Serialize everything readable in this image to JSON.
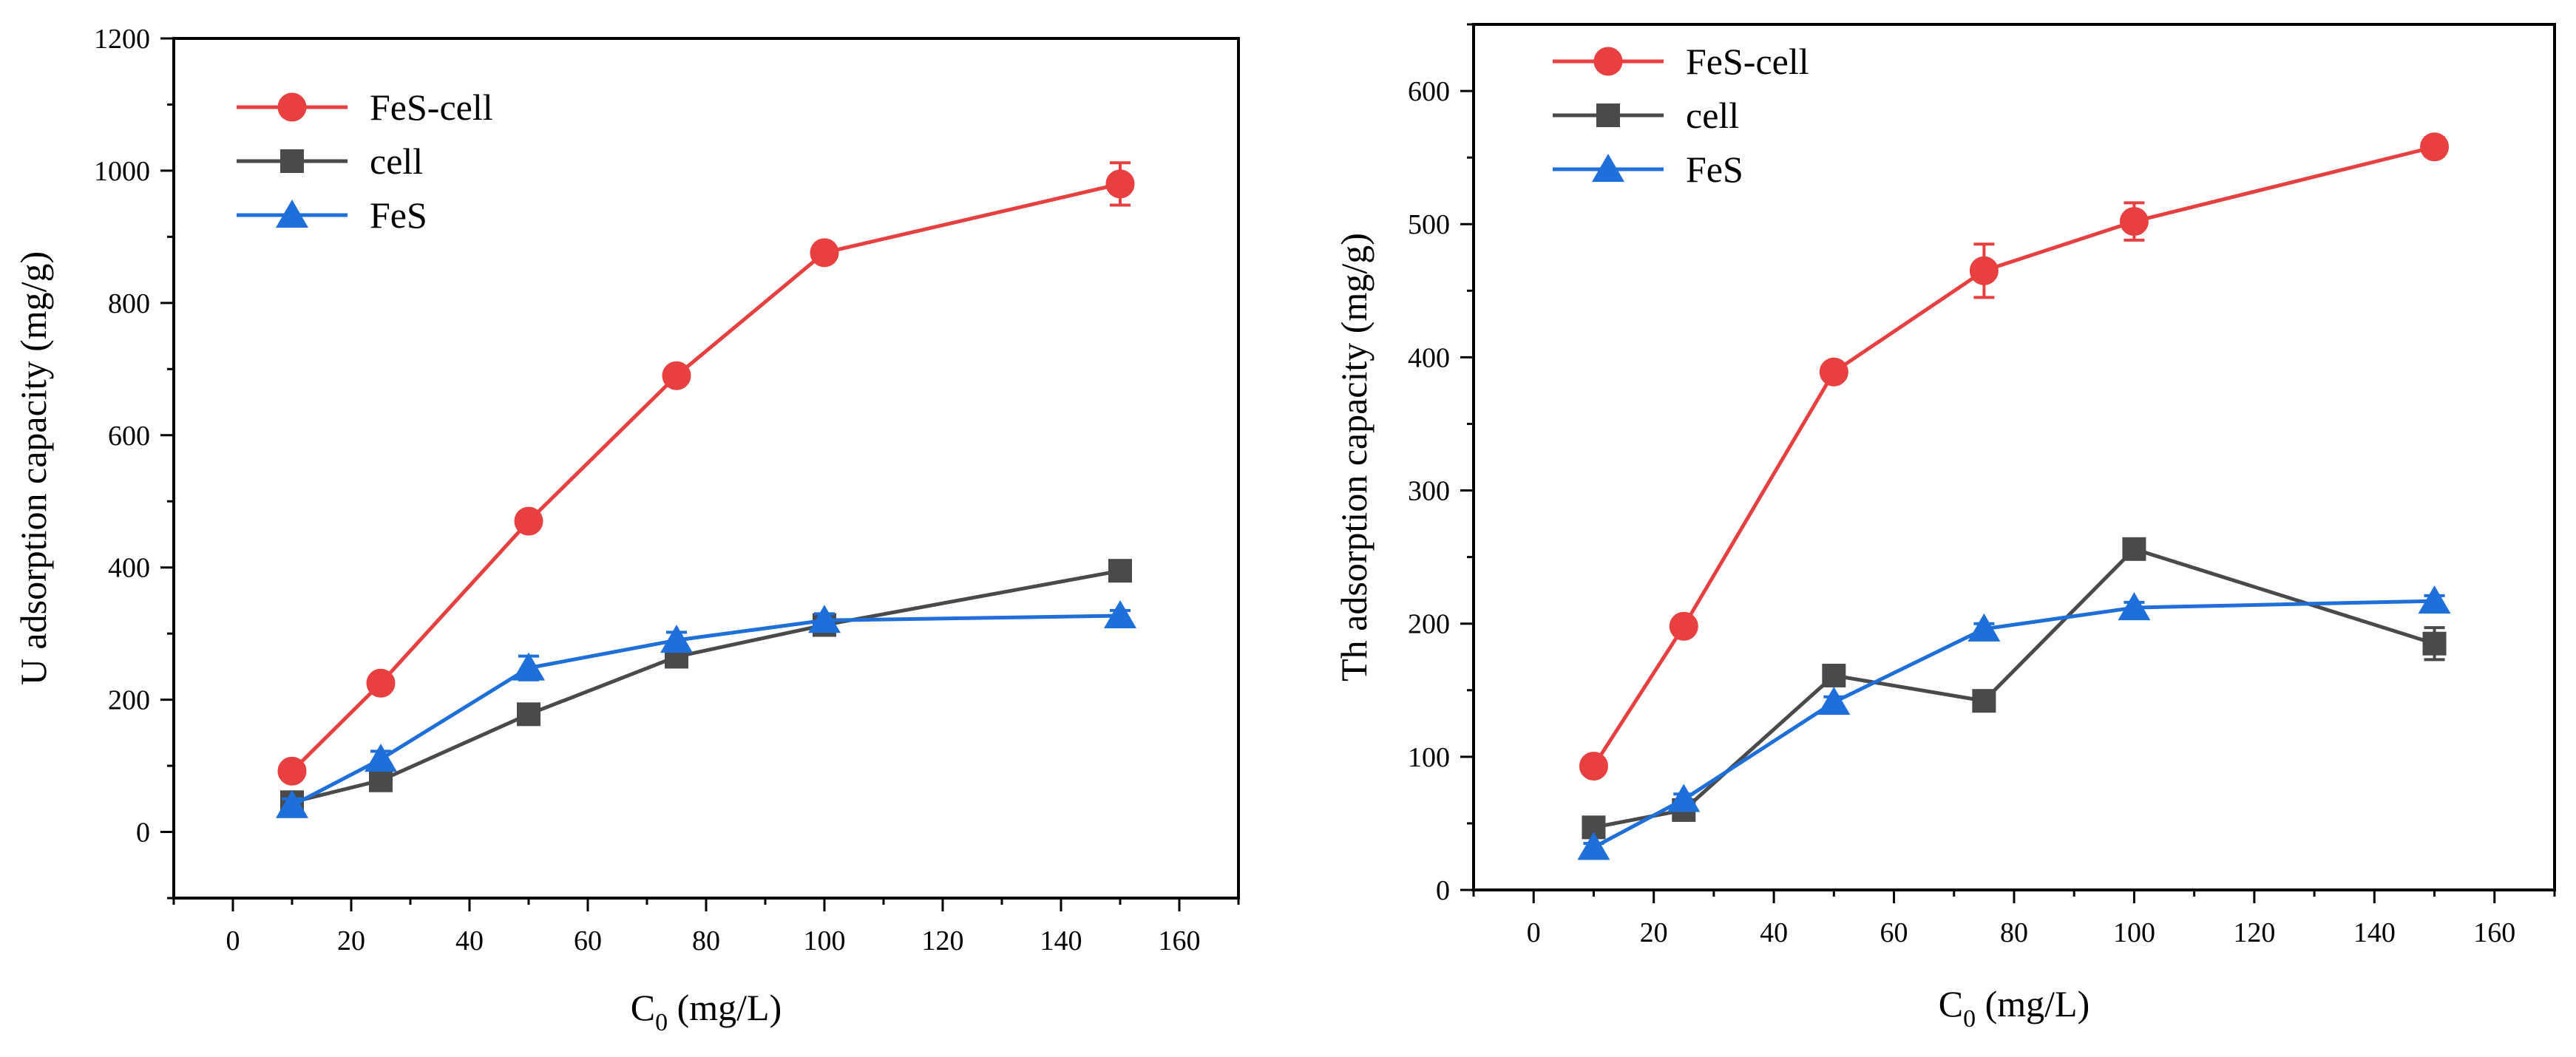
{
  "chart_data": [
    {
      "type": "line",
      "title": "",
      "xlabel": {
        "main": "C",
        "sub": "0",
        "unit": " (mg/L)"
      },
      "ylabel": "U adsorption capacity (mg/g)",
      "xlim": [
        -10,
        170
      ],
      "ylim": [
        -100,
        1200
      ],
      "xticks": [
        0,
        20,
        40,
        60,
        80,
        100,
        120,
        140,
        160
      ],
      "yticks": [
        0,
        200,
        400,
        600,
        800,
        1000,
        1200
      ],
      "grid": false,
      "legend": "top-left",
      "x": [
        10,
        25,
        50,
        75,
        100,
        150
      ],
      "series": [
        {
          "name": "FeS-cell",
          "marker": "circle",
          "color": "#E84040",
          "values": [
            92,
            225,
            470,
            690,
            876,
            980
          ],
          "errors": [
            6,
            8,
            8,
            8,
            14,
            32
          ]
        },
        {
          "name": "cell",
          "marker": "square",
          "color": "#4A4A4A",
          "values": [
            45,
            78,
            178,
            265,
            313,
            395
          ],
          "errors": [
            4,
            6,
            6,
            8,
            8,
            8
          ]
        },
        {
          "name": "FeS",
          "marker": "triangle",
          "color": "#1E6FD9",
          "values": [
            40,
            110,
            248,
            290,
            320,
            327
          ],
          "errors": [
            10,
            12,
            18,
            12,
            10,
            8
          ]
        }
      ]
    },
    {
      "type": "line",
      "title": "",
      "xlabel": {
        "main": "C",
        "sub": "0",
        "unit": " (mg/L)"
      },
      "ylabel": "Th adsorption capacity (mg/g)",
      "xlim": [
        -10,
        170
      ],
      "ylim": [
        0,
        650
      ],
      "xticks": [
        0,
        20,
        40,
        60,
        80,
        100,
        120,
        140,
        160
      ],
      "yticks": [
        0,
        100,
        200,
        300,
        400,
        500,
        600
      ],
      "grid": false,
      "legend": "top-left",
      "x": [
        10,
        25,
        50,
        75,
        100,
        150
      ],
      "series": [
        {
          "name": "FeS-cell",
          "marker": "circle",
          "color": "#E84040",
          "values": [
            93,
            198,
            389,
            465,
            502,
            558
          ],
          "errors": [
            4,
            5,
            4,
            20,
            14,
            7
          ]
        },
        {
          "name": "cell",
          "marker": "square",
          "color": "#4A4A4A",
          "values": [
            47,
            60,
            161,
            142,
            256,
            185
          ],
          "errors": [
            3,
            4,
            4,
            4,
            4,
            12
          ]
        },
        {
          "name": "FeS",
          "marker": "triangle",
          "color": "#1E6FD9",
          "values": [
            32,
            68,
            141,
            196,
            212,
            217
          ],
          "errors": [
            3,
            4,
            4,
            4,
            4,
            4
          ]
        }
      ]
    }
  ]
}
